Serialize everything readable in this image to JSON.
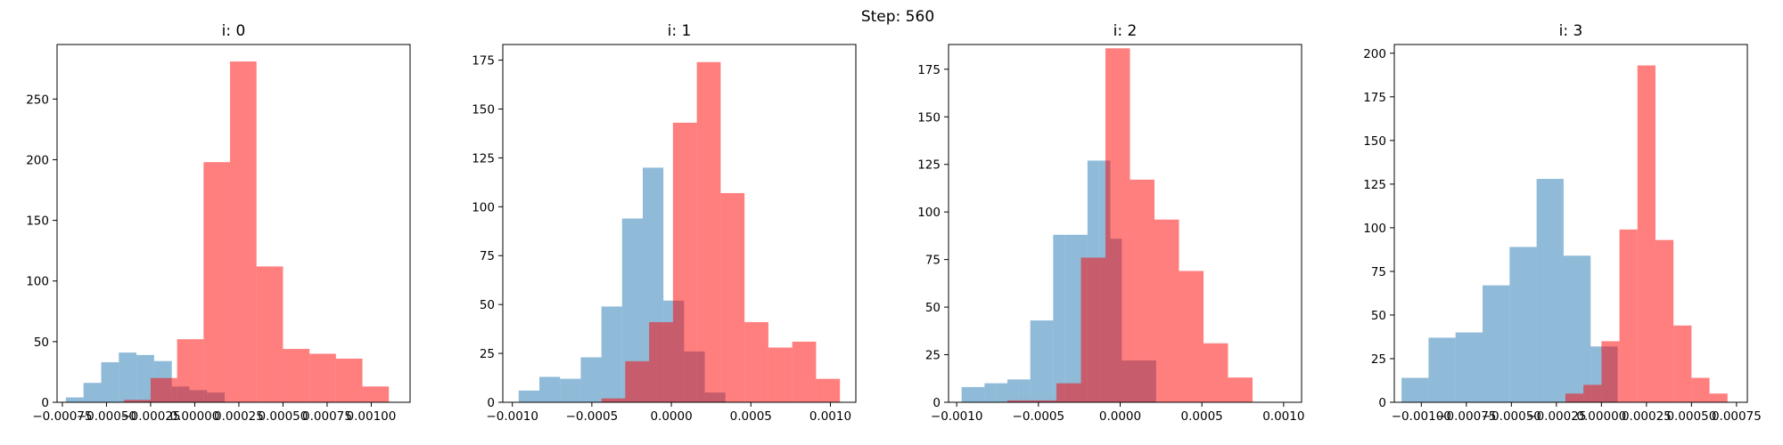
{
  "figure": {
    "suptitle": "Step: 560"
  },
  "chart_data": [
    {
      "type": "histogram",
      "title": "i: 0",
      "xlim": [
        -0.00078,
        0.00122
      ],
      "ylim": [
        0,
        295
      ],
      "xticks": [
        -0.00075,
        -0.0005,
        -0.00025,
        0.0,
        0.00025,
        0.0005,
        0.00075,
        0.001
      ],
      "xtick_labels": [
        "−0.00075",
        "−0.00050",
        "−0.00025",
        "0.00000",
        "0.00025",
        "0.00050",
        "0.00075",
        "0.00100"
      ],
      "yticks": [
        0,
        50,
        100,
        150,
        200,
        250
      ],
      "series": [
        {
          "color": "#1f77b4",
          "alpha": 0.5,
          "edges": [
            -0.00073,
            -0.00063,
            -0.00053,
            -0.00043,
            -0.00033,
            -0.00023,
            -0.00013,
            -3e-05,
            7e-05,
            0.00017
          ],
          "counts": [
            4,
            16,
            33,
            41,
            39,
            34,
            13,
            10,
            8,
            3
          ]
        },
        {
          "color": "#ff0000",
          "alpha": 0.5,
          "edges": [
            -0.0004,
            -0.00025,
            -0.0001,
            5e-05,
            0.0002,
            0.00035,
            0.0005,
            0.00065,
            0.0008,
            0.00095,
            0.0011
          ],
          "counts": [
            2,
            20,
            52,
            198,
            281,
            112,
            44,
            40,
            36,
            13
          ]
        }
      ]
    },
    {
      "type": "histogram",
      "title": "i: 1",
      "xlim": [
        -0.00106,
        0.00116
      ],
      "ylim": [
        0,
        183
      ],
      "xticks": [
        -0.001,
        -0.0005,
        0.0,
        0.0005,
        0.001
      ],
      "xtick_labels": [
        "−0.0010",
        "−0.0005",
        "0.0000",
        "0.0005",
        "0.0010"
      ],
      "yticks": [
        0,
        25,
        50,
        75,
        100,
        125,
        150,
        175
      ],
      "series": [
        {
          "color": "#1f77b4",
          "alpha": 0.5,
          "edges": [
            -0.00096,
            -0.00083,
            -0.0007,
            -0.00057,
            -0.00044,
            -0.00031,
            -0.00018,
            -5e-05,
            8e-05,
            0.00021,
            0.00034
          ],
          "counts": [
            6,
            13,
            12,
            23,
            49,
            94,
            120,
            52,
            26,
            5
          ]
        },
        {
          "color": "#ff0000",
          "alpha": 0.5,
          "edges": [
            -0.00044,
            -0.00029,
            -0.00014,
            1e-05,
            0.00016,
            0.00031,
            0.00046,
            0.00061,
            0.00076,
            0.00091,
            0.00106
          ],
          "counts": [
            2,
            21,
            41,
            143,
            174,
            107,
            41,
            28,
            31,
            12
          ]
        }
      ]
    },
    {
      "type": "histogram",
      "title": "i: 2",
      "xlim": [
        -0.00105,
        0.00111
      ],
      "ylim": [
        0,
        188
      ],
      "xticks": [
        -0.001,
        -0.0005,
        0.0,
        0.0005,
        0.001
      ],
      "xtick_labels": [
        "−0.0010",
        "−0.0005",
        "0.0000",
        "0.0005",
        "0.0010"
      ],
      "yticks": [
        0,
        25,
        50,
        75,
        100,
        125,
        150,
        175
      ],
      "series": [
        {
          "color": "#1f77b4",
          "alpha": 0.5,
          "edges": [
            -0.00097,
            -0.0009,
            -0.00083,
            -0.00076,
            -0.00069,
            -0.00062,
            -0.00055,
            -0.00048,
            -0.00041,
            -0.00034,
            -0.00027,
            -0.0002,
            -0.00013,
            -6e-05,
            1e-05,
            8e-05,
            0.00015,
            0.00022,
            0.00029,
            0.00036
          ],
          "counts": [
            8,
            8,
            10,
            10,
            12,
            12,
            43,
            43,
            88,
            88,
            88,
            127,
            127,
            86,
            22,
            22,
            22,
            0,
            0
          ]
        },
        {
          "color": "#ff0000",
          "alpha": 0.5,
          "edges": [
            -0.00069,
            -0.00054,
            -0.00039,
            -0.00024,
            -9e-05,
            6e-05,
            0.00021,
            0.00036,
            0.00051,
            0.00066,
            0.00081,
            0.00096,
            0.00111
          ],
          "counts": [
            1,
            1,
            10,
            76,
            186,
            117,
            96,
            69,
            31,
            13,
            0,
            0
          ]
        }
      ]
    },
    {
      "type": "histogram",
      "title": "i: 3",
      "xlim": [
        -0.00115,
        0.00081
      ],
      "ylim": [
        0,
        205
      ],
      "xticks": [
        -0.001,
        -0.00075,
        -0.0005,
        -0.00025,
        0.0,
        0.00025,
        0.0005,
        0.00075
      ],
      "xtick_labels": [
        "−0.00100",
        "−0.00075",
        "−0.00050",
        "−0.00025",
        "0.00000",
        "0.00025",
        "0.00050",
        "0.00075"
      ],
      "yticks": [
        0,
        25,
        50,
        75,
        100,
        125,
        150,
        175,
        200
      ],
      "series": [
        {
          "color": "#1f77b4",
          "alpha": 0.5,
          "edges": [
            -0.00111,
            -0.00096,
            -0.00081,
            -0.00066,
            -0.00051,
            -0.00036,
            -0.00021,
            -6e-05,
            9e-05
          ],
          "counts": [
            14,
            37,
            40,
            67,
            89,
            128,
            84,
            32
          ]
        },
        {
          "color": "#ff0000",
          "alpha": 0.5,
          "edges": [
            -0.0002,
            -0.0001,
            0.0,
            0.0001,
            0.0002,
            0.0003,
            0.0004,
            0.0005,
            0.0006,
            0.0007
          ],
          "counts": [
            5,
            10,
            35,
            99,
            193,
            93,
            44,
            14,
            5
          ]
        }
      ]
    }
  ]
}
